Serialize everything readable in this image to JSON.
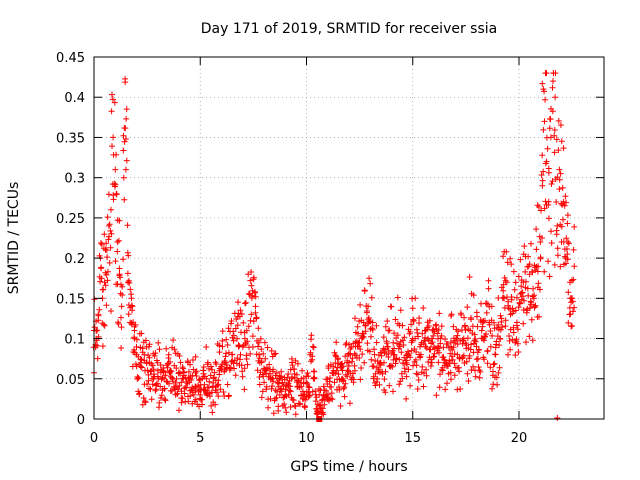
{
  "chart_data": {
    "type": "scatter",
    "title": "Day 171 of 2019, SRMTID for receiver ssia",
    "xlabel": "GPS time / hours",
    "ylabel": "SRMTID / TECUs",
    "xlim": [
      0,
      24
    ],
    "ylim": [
      0,
      0.45
    ],
    "x_ticks": [
      0,
      5,
      10,
      15,
      20
    ],
    "x_tick_labels": [
      "0",
      "5",
      "10",
      "15",
      "20"
    ],
    "y_ticks": [
      0,
      0.05,
      0.1,
      0.15,
      0.2,
      0.25,
      0.3,
      0.35,
      0.4,
      0.45
    ],
    "y_tick_labels": [
      "0",
      "0.05",
      "0.1",
      "0.15",
      "0.2",
      "0.25",
      "0.3",
      "0.35",
      "0.4",
      "0.45"
    ],
    "grid": true,
    "marker": "+",
    "series": [
      {
        "name": "SRMTID",
        "color": "#ff0000",
        "x": [
          0.0,
          0.1,
          0.2,
          0.3,
          0.4,
          0.5,
          0.6,
          0.7,
          0.8,
          0.9,
          1.0,
          1.05,
          1.1,
          1.2,
          1.3,
          1.4,
          1.5,
          1.6,
          1.7,
          1.8,
          1.9,
          2.0,
          2.2,
          2.4,
          2.6,
          2.8,
          3.0,
          3.3,
          3.6,
          3.9,
          4.2,
          4.5,
          4.8,
          5.0,
          5.3,
          5.6,
          5.9,
          6.2,
          6.5,
          6.8,
          7.1,
          7.4,
          7.6,
          7.8,
          8.1,
          8.4,
          8.7,
          9.0,
          9.3,
          9.6,
          9.9,
          10.1,
          10.3,
          10.5,
          10.8,
          11.1,
          11.4,
          11.7,
          12.0,
          12.3,
          12.6,
          12.9,
          13.2,
          13.5,
          13.8,
          14.1,
          14.4,
          14.7,
          15.0,
          15.3,
          15.6,
          15.9,
          16.2,
          16.5,
          16.8,
          17.1,
          17.4,
          17.7,
          18.0,
          18.3,
          18.6,
          18.9,
          19.1,
          19.3,
          19.6,
          19.9,
          20.2,
          20.5,
          20.7,
          20.9,
          21.0,
          21.1,
          21.2,
          21.3,
          21.4,
          21.5,
          21.6,
          21.7,
          21.8,
          21.9,
          22.0,
          22.1,
          22.2,
          22.3,
          22.4,
          22.5,
          22.6
        ],
        "y": [
          0.11,
          0.1,
          0.13,
          0.2,
          0.15,
          0.17,
          0.21,
          0.24,
          0.26,
          0.35,
          0.31,
          0.28,
          0.22,
          0.18,
          0.14,
          0.3,
          0.31,
          0.17,
          0.12,
          0.14,
          0.1,
          0.08,
          0.07,
          0.06,
          0.07,
          0.05,
          0.06,
          0.05,
          0.06,
          0.04,
          0.05,
          0.05,
          0.04,
          0.03,
          0.05,
          0.04,
          0.06,
          0.07,
          0.08,
          0.09,
          0.1,
          0.13,
          0.14,
          0.07,
          0.06,
          0.05,
          0.04,
          0.03,
          0.05,
          0.04,
          0.03,
          0.04,
          0.09,
          0.01,
          0.03,
          0.04,
          0.06,
          0.05,
          0.07,
          0.09,
          0.1,
          0.14,
          0.08,
          0.07,
          0.09,
          0.08,
          0.09,
          0.07,
          0.1,
          0.08,
          0.09,
          0.1,
          0.09,
          0.07,
          0.09,
          0.08,
          0.1,
          0.11,
          0.09,
          0.1,
          0.12,
          0.08,
          0.1,
          0.15,
          0.13,
          0.12,
          0.17,
          0.18,
          0.15,
          0.19,
          0.22,
          0.29,
          0.37,
          0.32,
          0.27,
          0.35,
          0.42,
          0.4,
          0.24,
          0.31,
          0.22,
          0.27,
          0.2,
          0.22,
          0.17,
          0.15,
          0.19
        ]
      }
    ],
    "highlight_points": [
      {
        "x": 10.6,
        "y": 0.0,
        "shape": "square"
      },
      {
        "x": 21.8,
        "y": 0.0,
        "shape": "plus"
      }
    ]
  }
}
